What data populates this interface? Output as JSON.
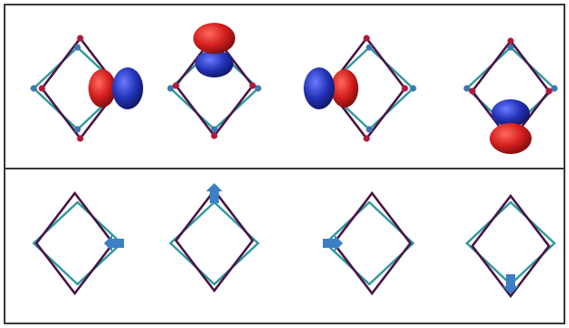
{
  "colors": {
    "frame": "#3a3a3a",
    "teal_square": "#2e9a9c",
    "purple_square": "#4a1346",
    "lobe_red": "#d41f1f",
    "lobe_blue": "#2433b8",
    "atom_red": "#b21a3a",
    "atom_blue": "#3f78b0",
    "arrow": "#3d7fc4"
  },
  "panels": [
    {
      "name": "orbital-panel",
      "items": [
        {
          "lobe_direction": "right"
        },
        {
          "lobe_direction": "up"
        },
        {
          "lobe_direction": "left"
        },
        {
          "lobe_direction": "down"
        }
      ]
    },
    {
      "name": "displacement-panel",
      "items": [
        {
          "arrow_direction": "left"
        },
        {
          "arrow_direction": "up"
        },
        {
          "arrow_direction": "right"
        },
        {
          "arrow_direction": "down"
        }
      ]
    }
  ]
}
